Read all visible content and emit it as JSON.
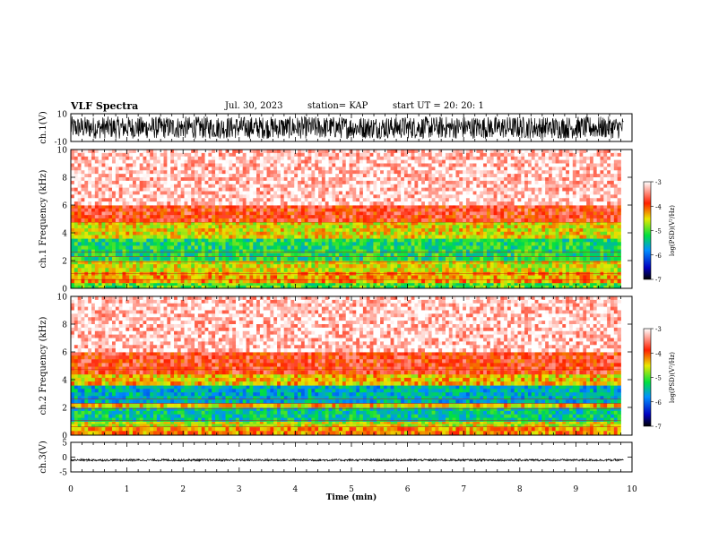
{
  "header": {
    "title": "VLF Spectra",
    "date": "Jul. 30, 2023",
    "station": "station= KAP",
    "start": "start UT =  20: 20: 1"
  },
  "chart_data": [
    {
      "type": "line",
      "panel": "ch1-waveform",
      "ylabel": "ch.1(V)",
      "ylim": [
        -10,
        10
      ],
      "yticks": [
        "10",
        "-10"
      ],
      "xlim": [
        0,
        10
      ],
      "description_values": "dense noisy waveform spanning roughly -8 to 8 V"
    },
    {
      "type": "heatmap",
      "panel": "ch1-spectrogram",
      "ylabel": "ch.1 Frequency (kHz)",
      "ylim": [
        0,
        10
      ],
      "yticks": [
        "0",
        "2",
        "4",
        "6",
        "8",
        "10"
      ],
      "xlim": [
        0,
        9.8
      ],
      "colorbar": {
        "label": "log(PSD)(V²/Hz)",
        "range": [
          -7,
          -3
        ],
        "ticks": [
          "-3",
          "-4",
          "-5",
          "-6",
          "-7"
        ]
      },
      "bands": [
        {
          "from": 0,
          "to": 0.4,
          "level": -5.0
        },
        {
          "from": 0.4,
          "to": 1.2,
          "level": -4.3
        },
        {
          "from": 1.2,
          "to": 2.0,
          "level": -4.6
        },
        {
          "from": 2.0,
          "to": 3.6,
          "level": -5.2
        },
        {
          "from": 3.6,
          "to": 4.8,
          "level": -4.5
        },
        {
          "from": 4.8,
          "to": 6.0,
          "level": -3.8
        },
        {
          "from": 6.0,
          "to": 10.0,
          "level": -3.2
        }
      ]
    },
    {
      "type": "heatmap",
      "panel": "ch2-spectrogram",
      "ylabel": "ch.2 Frequency (kHz)",
      "ylim": [
        0,
        10
      ],
      "yticks": [
        "0",
        "2",
        "4",
        "6",
        "8",
        "10"
      ],
      "xlim": [
        0,
        9.8
      ],
      "colorbar": {
        "label": "log(PSD)(V²/Hz)",
        "range": [
          -7,
          -3
        ],
        "ticks": [
          "-3",
          "-4",
          "-5",
          "-6",
          "-7"
        ]
      },
      "bands": [
        {
          "from": 0,
          "to": 0.6,
          "level": -4.2
        },
        {
          "from": 0.6,
          "to": 1.0,
          "level": -4.6
        },
        {
          "from": 1.0,
          "to": 2.0,
          "level": -5.4
        },
        {
          "from": 2.0,
          "to": 2.3,
          "level": -4.4
        },
        {
          "from": 2.3,
          "to": 3.6,
          "level": -5.6
        },
        {
          "from": 3.6,
          "to": 4.4,
          "level": -4.4
        },
        {
          "from": 4.4,
          "to": 6.0,
          "level": -3.8
        },
        {
          "from": 6.0,
          "to": 10.0,
          "level": -3.2
        }
      ]
    },
    {
      "type": "line",
      "panel": "ch3-waveform",
      "ylabel": "ch.3(V)",
      "ylim": [
        -5,
        5
      ],
      "yticks": [
        "5",
        "0",
        "-5"
      ],
      "xlim": [
        0,
        10
      ],
      "xlabel": "Time (min)",
      "xticks": [
        "0",
        "1",
        "2",
        "3",
        "4",
        "5",
        "6",
        "7",
        "8",
        "9",
        "10"
      ],
      "description_values": "near-constant band around -1 V"
    }
  ],
  "colors": {
    "low": "#000080",
    "mid_low": "#00e040",
    "mid": "#e8e800",
    "high": "#ff2000",
    "top": "#ffffff"
  }
}
